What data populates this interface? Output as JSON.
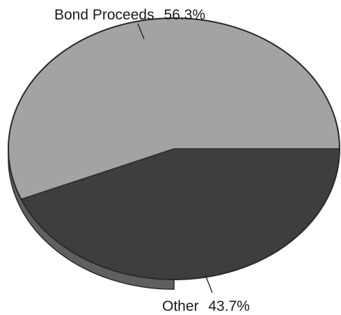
{
  "chart_data": {
    "type": "pie",
    "style": "3d-tilted",
    "slices": [
      {
        "label": "Bond Proceeds",
        "value": 56.3,
        "display": "56.3%",
        "color": "#a3a3a3"
      },
      {
        "label": "Other",
        "value": 43.7,
        "display": "43.7%",
        "color": "#3e3e3e"
      }
    ],
    "edge_color": "#5f5f5f",
    "outline_color": "#2a2a2a"
  }
}
